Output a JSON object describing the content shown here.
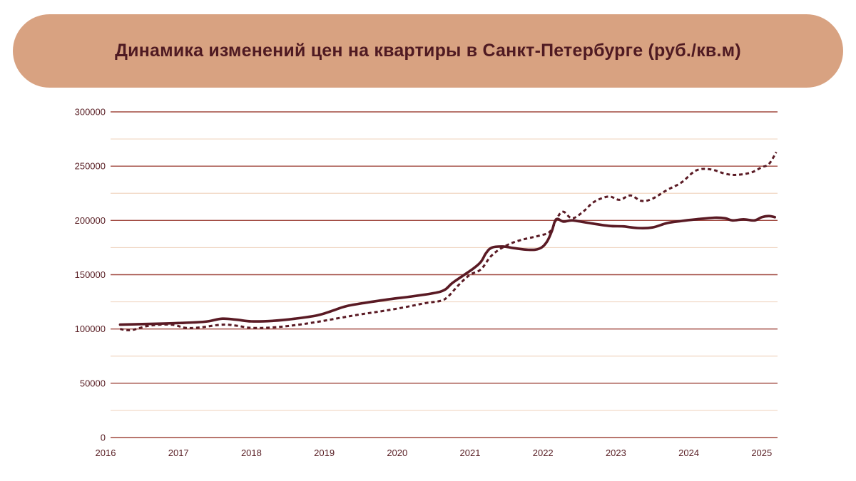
{
  "title": "Динамика изменений цен на квартиры в Санкт-Петербурге (руб./кв.м)",
  "colors": {
    "title_bg": "#d8a281",
    "title_text": "#4f1a22",
    "major_grid": "#a0483f",
    "minor_grid": "#f0d6c2",
    "line": "#5a1a24",
    "axis_label": "#5a2026"
  },
  "chart_data": {
    "type": "line",
    "title": "Динамика изменений цен на квартиры в Санкт-Петербурге (руб./кв.м)",
    "xlabel": "",
    "ylabel": "",
    "ylim": [
      0,
      300000
    ],
    "xlim": [
      2016,
      2025.2
    ],
    "grid": true,
    "legend": null,
    "y_ticks": [
      "0",
      "50000",
      "100000",
      "150000",
      "200000",
      "250000",
      "300000"
    ],
    "x_ticks": [
      "2016",
      "2017",
      "2018",
      "2019",
      "2020",
      "2021",
      "2022",
      "2023",
      "2024",
      "2025"
    ],
    "series": [
      {
        "name": "solid",
        "style": "solid",
        "x": [
          2016.2,
          2016.5,
          2016.8,
          2017.0,
          2017.2,
          2017.4,
          2017.6,
          2017.8,
          2018.0,
          2018.3,
          2018.6,
          2018.9,
          2019.1,
          2019.3,
          2019.6,
          2019.9,
          2020.2,
          2020.5,
          2020.65,
          2020.75,
          2020.9,
          2021.05,
          2021.15,
          2021.22,
          2021.3,
          2021.45,
          2021.6,
          2021.8,
          2021.95,
          2022.05,
          2022.12,
          2022.18,
          2022.28,
          2022.4,
          2022.6,
          2022.9,
          2023.1,
          2023.3,
          2023.5,
          2023.7,
          2023.9,
          2024.1,
          2024.35,
          2024.5,
          2024.6,
          2024.75,
          2024.9,
          2025.0,
          2025.1,
          2025.18
        ],
        "values": [
          104000,
          104500,
          105000,
          105500,
          106000,
          107000,
          109500,
          108500,
          107000,
          107500,
          109500,
          112500,
          116500,
          121000,
          124500,
          127500,
          130000,
          133000,
          136000,
          142000,
          149000,
          156000,
          162000,
          170000,
          175000,
          176000,
          174500,
          173000,
          174000,
          180000,
          190000,
          201000,
          199000,
          200000,
          198000,
          195000,
          194500,
          193000,
          193500,
          197500,
          199500,
          201000,
          202500,
          202000,
          200000,
          201000,
          200000,
          203000,
          204000,
          203000
        ]
      },
      {
        "name": "dashed",
        "style": "dashed",
        "x": [
          2016.2,
          2016.35,
          2016.6,
          2016.9,
          2017.1,
          2017.3,
          2017.6,
          2017.8,
          2018.0,
          2018.3,
          2018.6,
          2018.9,
          2019.2,
          2019.5,
          2019.8,
          2020.1,
          2020.4,
          2020.6,
          2020.7,
          2020.85,
          2021.0,
          2021.15,
          2021.3,
          2021.5,
          2021.7,
          2021.95,
          2022.1,
          2022.2,
          2022.28,
          2022.4,
          2022.55,
          2022.7,
          2022.9,
          2023.05,
          2023.2,
          2023.35,
          2023.5,
          2023.7,
          2023.9,
          2024.1,
          2024.3,
          2024.5,
          2024.65,
          2024.85,
          2025.0,
          2025.1,
          2025.2
        ],
        "values": [
          100000,
          99000,
          103000,
          104000,
          101000,
          101500,
          104000,
          103000,
          101000,
          101500,
          103500,
          106500,
          110000,
          113500,
          116500,
          120000,
          124000,
          126000,
          130000,
          141000,
          150000,
          155000,
          168000,
          177000,
          182000,
          186000,
          190000,
          203000,
          208000,
          202000,
          208000,
          217000,
          222000,
          219000,
          223000,
          218000,
          220000,
          228000,
          235000,
          246000,
          247000,
          243000,
          242000,
          244000,
          249000,
          252000,
          263000
        ]
      }
    ]
  }
}
